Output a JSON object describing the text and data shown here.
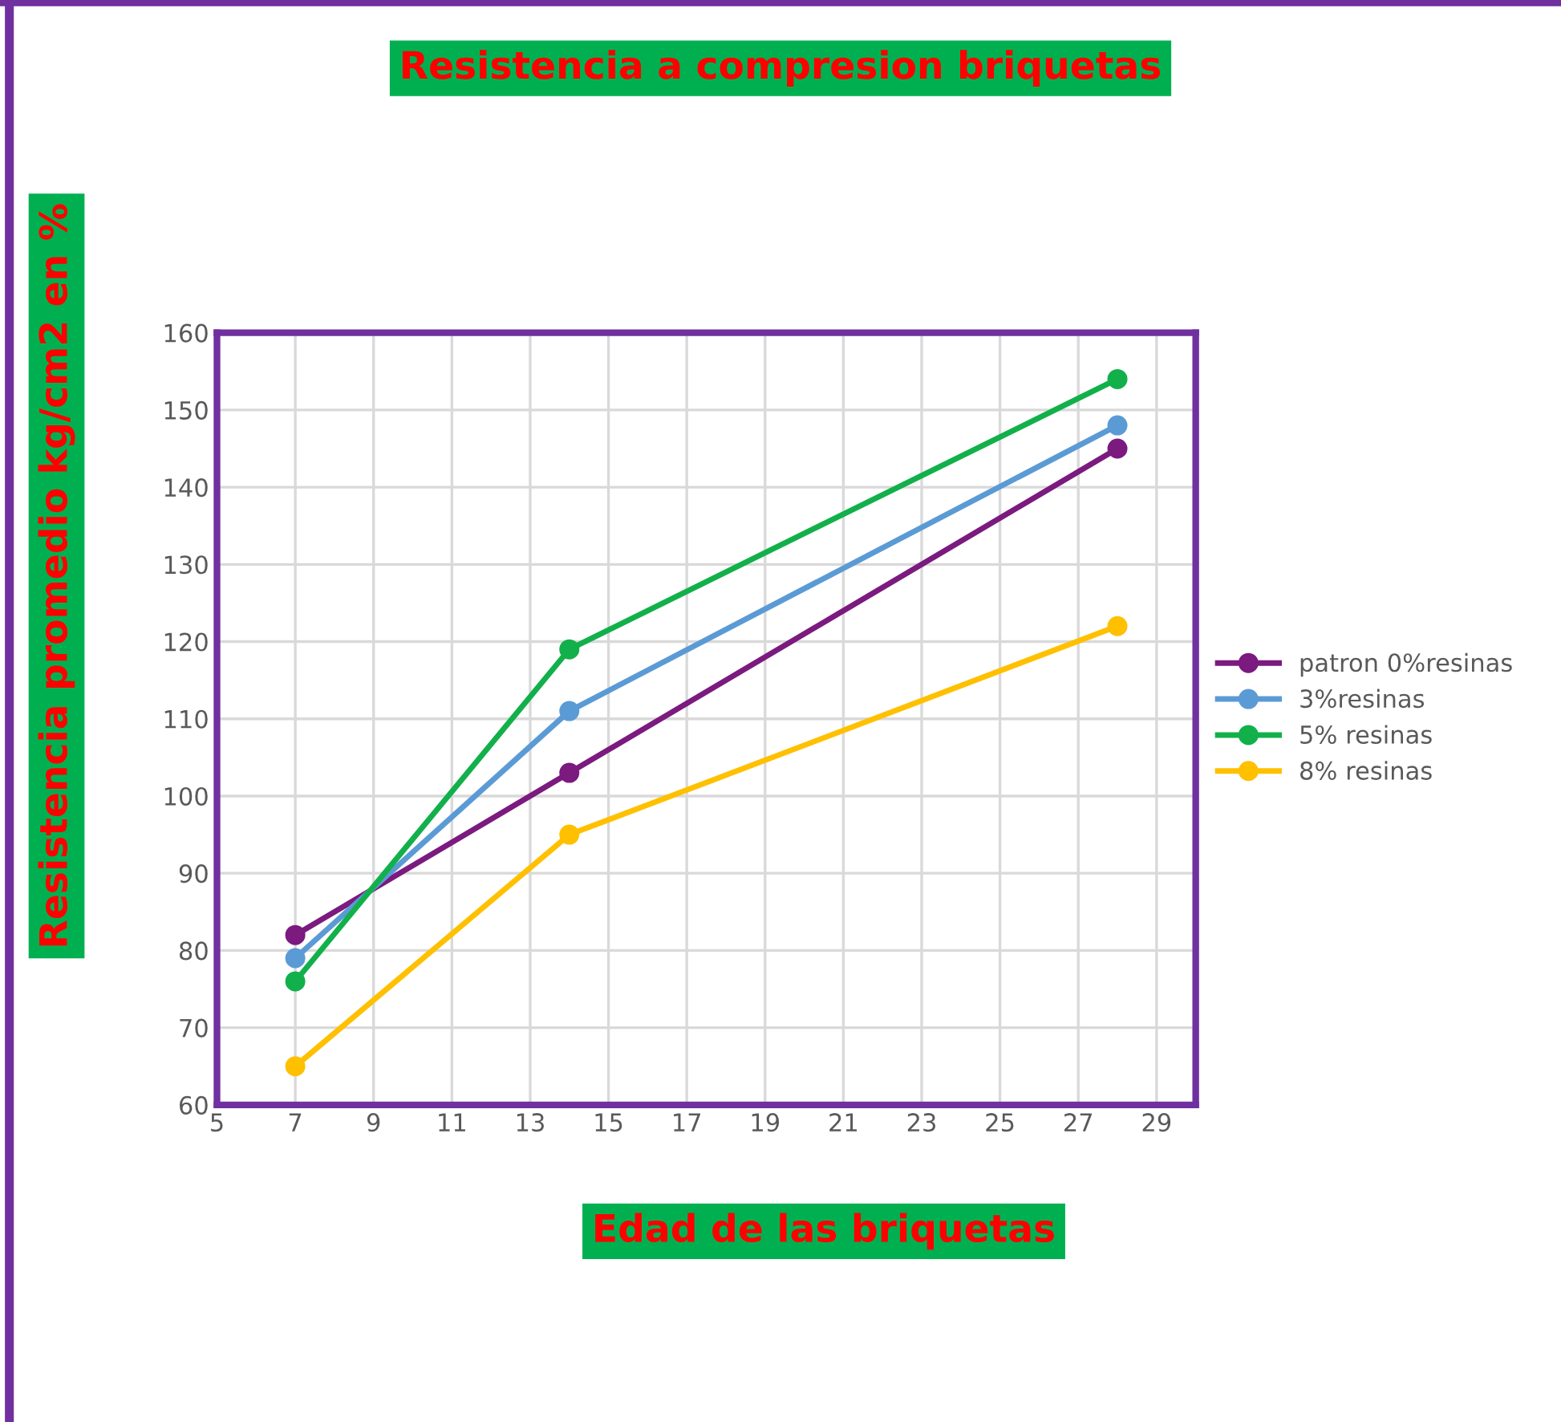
{
  "chart_data": {
    "type": "line",
    "title": "Resistencia a compresion briquetas",
    "xlabel": "Edad de las briquetas",
    "ylabel": "Resistencia promedio kg/cm2 en %",
    "x": [
      7,
      14,
      28
    ],
    "series": [
      {
        "name": "patron 0%resinas",
        "color": "#7b1a7f",
        "values": [
          82,
          103,
          145
        ]
      },
      {
        "name": "3%resinas",
        "color": "#5b9bd5",
        "values": [
          79,
          111,
          148
        ]
      },
      {
        "name": "5% resinas",
        "color": "#12b04b",
        "values": [
          76,
          119,
          154
        ]
      },
      {
        "name": "8% resinas",
        "color": "#ffc000",
        "values": [
          65,
          95,
          122
        ]
      }
    ],
    "xlim": [
      5,
      30
    ],
    "xticks": [
      5,
      7,
      9,
      11,
      13,
      15,
      17,
      19,
      21,
      23,
      25,
      27,
      29
    ],
    "ylim": [
      60,
      160
    ],
    "yticks": [
      60,
      70,
      80,
      90,
      100,
      110,
      120,
      130,
      140,
      150,
      160
    ],
    "grid": true,
    "legend": "right",
    "marker": "circle",
    "line_style": "solid"
  }
}
